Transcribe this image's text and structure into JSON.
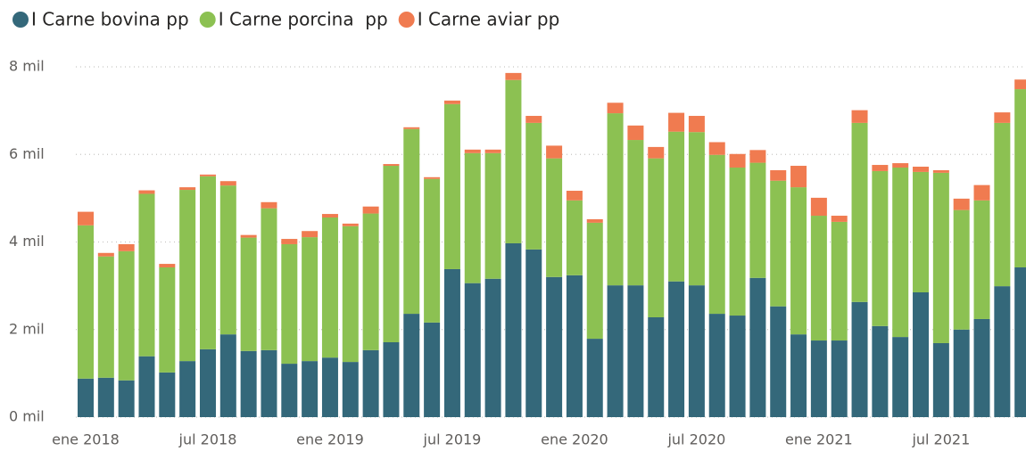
{
  "chart_data": {
    "type": "stacked_bar",
    "categories": [
      "ene 2018",
      null,
      null,
      null,
      null,
      null,
      "jul 2018",
      null,
      null,
      null,
      null,
      null,
      "ene 2019",
      null,
      null,
      null,
      null,
      null,
      "jul 2019",
      null,
      null,
      null,
      null,
      null,
      "ene 2020",
      null,
      null,
      null,
      null,
      null,
      "jul 2020",
      null,
      null,
      null,
      null,
      null,
      "ene 2021",
      null,
      null,
      null,
      null,
      null,
      "jul 2021",
      null,
      null,
      null,
      null
    ],
    "series": [
      {
        "name": "I Carne bovina pp",
        "color": "#34687a",
        "values": [
          880,
          900,
          840,
          1390,
          1020,
          1280,
          1550,
          1890,
          1510,
          1530,
          1220,
          1280,
          1360,
          1260,
          1530,
          1710,
          2360,
          2160,
          3380,
          3060,
          3160,
          3970,
          3830,
          3200,
          3240,
          1790,
          3010,
          3010,
          2280,
          3100,
          3010,
          2360,
          2320,
          3180,
          2530,
          1890,
          1750,
          1750,
          2630,
          2080,
          1830,
          2850,
          1690,
          2000,
          2240,
          2990,
          3420
        ]
      },
      {
        "name": "I Carne porcina  pp",
        "color": "#8cc152",
        "values": [
          3500,
          2770,
          2950,
          3710,
          2400,
          3910,
          3950,
          3400,
          2590,
          3240,
          2730,
          2830,
          3200,
          3100,
          3120,
          4030,
          4220,
          3280,
          3770,
          2970,
          2870,
          3730,
          2890,
          2710,
          1710,
          2650,
          3930,
          3320,
          3630,
          3420,
          3500,
          3630,
          3380,
          2630,
          2870,
          3360,
          2850,
          2710,
          4090,
          3540,
          3870,
          2750,
          3890,
          2730,
          2710,
          3730,
          4070
        ]
      },
      {
        "name": "I Carne aviar pp",
        "color": "#f07b50",
        "values": [
          310,
          80,
          160,
          80,
          80,
          60,
          40,
          100,
          60,
          140,
          120,
          140,
          80,
          60,
          160,
          40,
          40,
          40,
          80,
          80,
          80,
          160,
          160,
          290,
          220,
          80,
          240,
          330,
          260,
          430,
          370,
          290,
          310,
          290,
          240,
          490,
          410,
          140,
          290,
          140,
          100,
          120,
          60,
          260,
          350,
          240,
          220
        ]
      }
    ],
    "ylim": [
      0,
      8000
    ],
    "yticks": [
      {
        "value": 0,
        "label": "0 mil"
      },
      {
        "value": 2000,
        "label": "2 mil"
      },
      {
        "value": 4000,
        "label": "4 mil"
      },
      {
        "value": 6000,
        "label": "6 mil"
      },
      {
        "value": 8000,
        "label": "8 mil"
      }
    ],
    "grid": true,
    "legend": "top-left"
  }
}
